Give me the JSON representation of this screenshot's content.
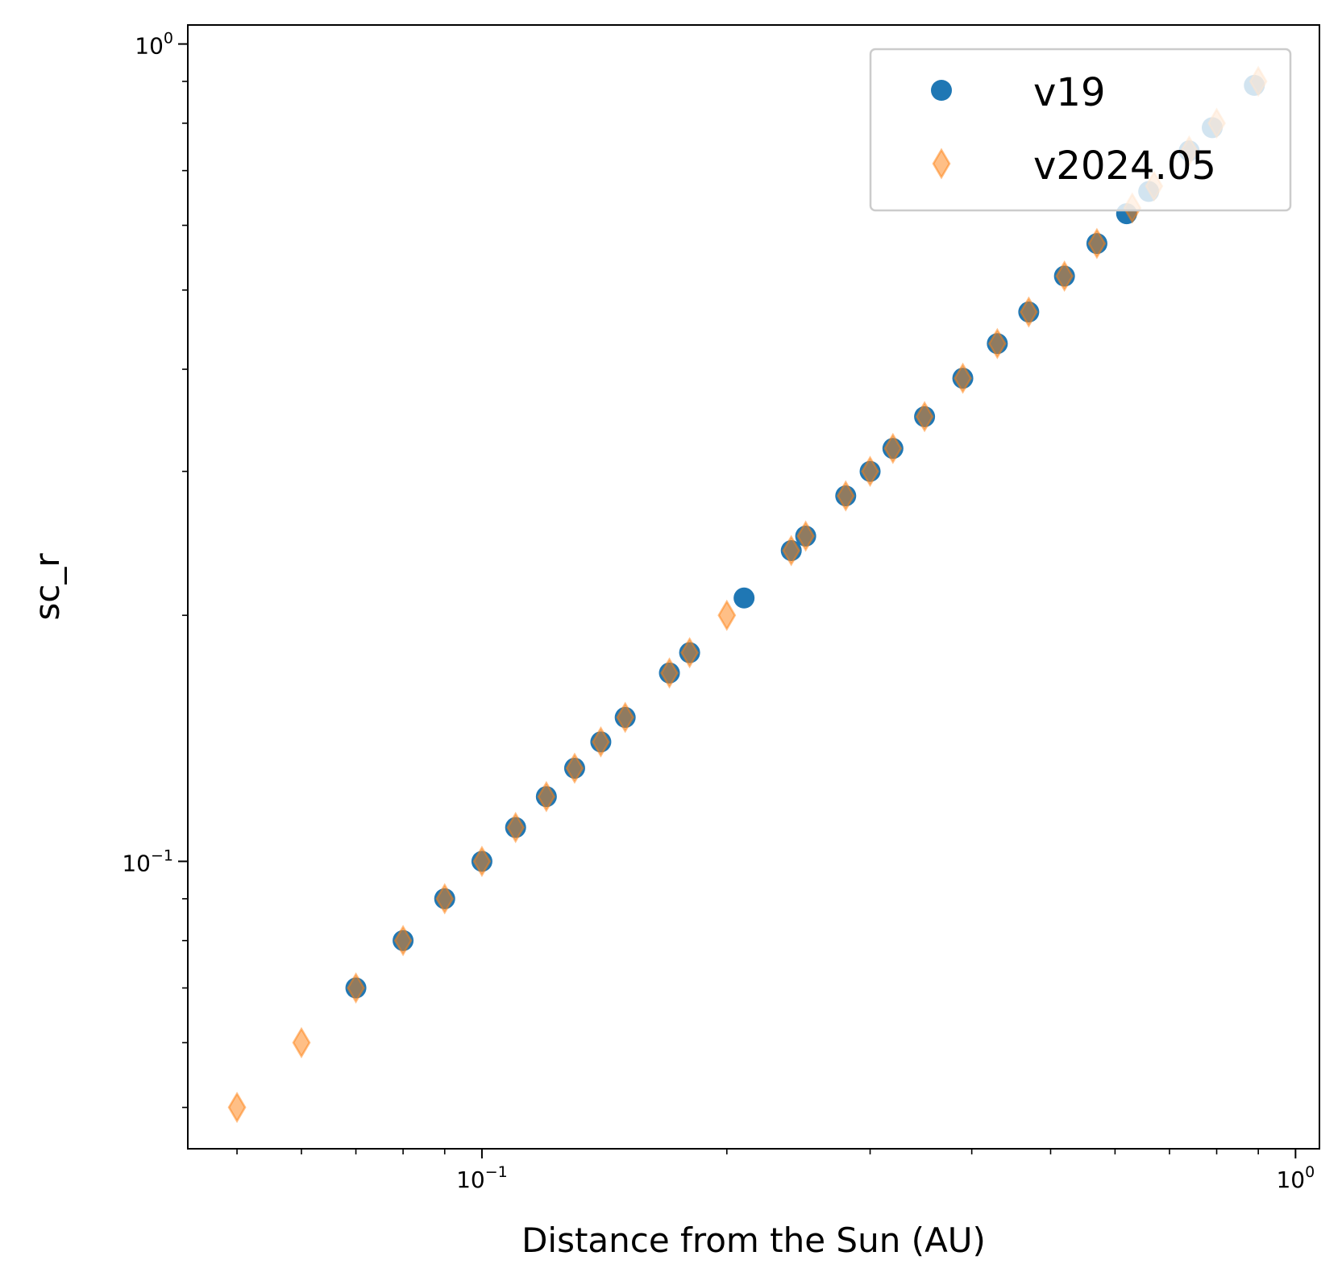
{
  "chart_data": {
    "type": "scatter",
    "title": "",
    "xlabel": "Distance from the Sun (AU)",
    "ylabel": "sc_r",
    "xscale": "log",
    "yscale": "log",
    "xlim": [
      0.0435,
      1.07
    ],
    "ylim": [
      0.0445,
      1.055
    ],
    "grid": false,
    "legend_position": "top-right",
    "x_ticks": [
      {
        "value": 0.1,
        "base": "10",
        "exp": "−1"
      },
      {
        "value": 1.0,
        "base": "10",
        "exp": "0"
      }
    ],
    "y_ticks": [
      {
        "value": 0.1,
        "base": "10",
        "exp": "−1"
      },
      {
        "value": 1.0,
        "base": "10",
        "exp": "0"
      }
    ],
    "series": [
      {
        "name": "v19",
        "marker": "circle",
        "color": "#1f77b4",
        "points": [
          [
            0.07,
            0.07
          ],
          [
            0.08,
            0.08
          ],
          [
            0.09,
            0.09
          ],
          [
            0.1,
            0.1
          ],
          [
            0.11,
            0.11
          ],
          [
            0.12,
            0.12
          ],
          [
            0.13,
            0.13
          ],
          [
            0.14,
            0.14
          ],
          [
            0.15,
            0.15
          ],
          [
            0.17,
            0.17
          ],
          [
            0.18,
            0.18
          ],
          [
            0.21,
            0.21
          ],
          [
            0.24,
            0.24
          ],
          [
            0.25,
            0.25
          ],
          [
            0.28,
            0.28
          ],
          [
            0.3,
            0.3
          ],
          [
            0.32,
            0.32
          ],
          [
            0.35,
            0.35
          ],
          [
            0.39,
            0.39
          ],
          [
            0.43,
            0.43
          ],
          [
            0.47,
            0.47
          ],
          [
            0.52,
            0.52
          ],
          [
            0.57,
            0.57
          ],
          [
            0.62,
            0.62
          ],
          [
            0.66,
            0.66
          ],
          [
            0.74,
            0.74
          ],
          [
            0.79,
            0.79
          ],
          [
            0.89,
            0.89
          ]
        ]
      },
      {
        "name": "v2024.05",
        "marker": "thin_diamond",
        "color": "#ff7f0e",
        "alpha": 0.5,
        "points": [
          [
            0.05,
            0.05
          ],
          [
            0.06,
            0.06
          ],
          [
            0.07,
            0.07
          ],
          [
            0.08,
            0.08
          ],
          [
            0.09,
            0.09
          ],
          [
            0.1,
            0.1
          ],
          [
            0.11,
            0.11
          ],
          [
            0.12,
            0.12
          ],
          [
            0.13,
            0.13
          ],
          [
            0.14,
            0.14
          ],
          [
            0.15,
            0.15
          ],
          [
            0.17,
            0.17
          ],
          [
            0.18,
            0.18
          ],
          [
            0.2,
            0.2
          ],
          [
            0.24,
            0.24
          ],
          [
            0.25,
            0.25
          ],
          [
            0.28,
            0.28
          ],
          [
            0.3,
            0.3
          ],
          [
            0.32,
            0.32
          ],
          [
            0.35,
            0.35
          ],
          [
            0.39,
            0.39
          ],
          [
            0.43,
            0.43
          ],
          [
            0.47,
            0.47
          ],
          [
            0.52,
            0.52
          ],
          [
            0.57,
            0.57
          ],
          [
            0.63,
            0.63
          ],
          [
            0.67,
            0.67
          ],
          [
            0.74,
            0.74
          ],
          [
            0.8,
            0.8
          ],
          [
            0.9,
            0.9
          ]
        ]
      }
    ]
  }
}
